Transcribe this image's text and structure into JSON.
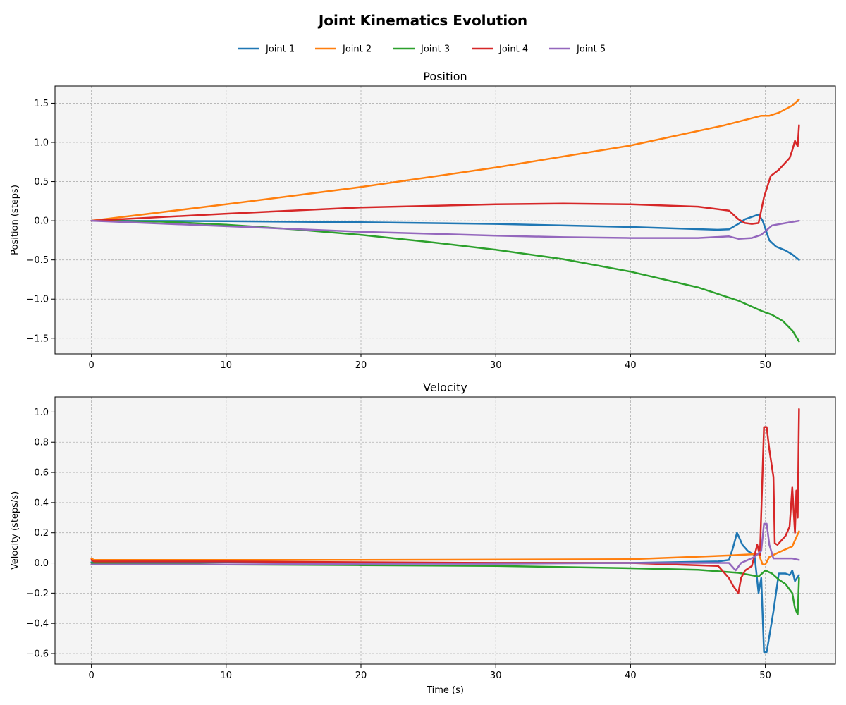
{
  "chart_data": {
    "title": "Joint Kinematics Evolution",
    "type": "line",
    "legend": {
      "placement": "top-center",
      "entries": [
        "Joint 1",
        "Joint 2",
        "Joint 3",
        "Joint 4",
        "Joint 5"
      ]
    },
    "colors": {
      "Joint 1": "#1f77b4",
      "Joint 2": "#ff7f0e",
      "Joint 3": "#2ca02c",
      "Joint 4": "#d62728",
      "Joint 5": "#9467bd"
    },
    "background": "#f4f4f4",
    "grid": true,
    "panels": [
      {
        "title": "Position",
        "xlabel": "",
        "ylabel": "Position (steps)",
        "xlim": [
          -2.7,
          55.2
        ],
        "ylim": [
          -1.7,
          1.72
        ],
        "xticks": [
          0,
          10,
          20,
          30,
          40,
          50
        ],
        "yticks": [
          -1.5,
          -1.0,
          -0.5,
          0.0,
          0.5,
          1.0,
          1.5
        ],
        "ytick_labels": [
          "−1.5",
          "−1.0",
          "−0.5",
          "0.0",
          "0.5",
          "1.0",
          "1.5"
        ],
        "series": [
          {
            "name": "Joint 1",
            "x": [
              0,
              10,
              20,
              30,
              40,
              46.5,
              47.3,
              48.0,
              48.5,
              49.0,
              49.5,
              49.8,
              50.3,
              50.8,
              51.5,
              52.0,
              52.5
            ],
            "y": [
              0,
              -0.005,
              -0.02,
              -0.04,
              -0.08,
              -0.115,
              -0.11,
              -0.04,
              0.02,
              0.05,
              0.08,
              0.0,
              -0.25,
              -0.33,
              -0.38,
              -0.43,
              -0.5
            ]
          },
          {
            "name": "Joint 2",
            "x": [
              0,
              10,
              20,
              30,
              40,
              47,
              49.7,
              50.3,
              51,
              52,
              52.5
            ],
            "y": [
              0,
              0.21,
              0.43,
              0.68,
              0.96,
              1.22,
              1.34,
              1.34,
              1.38,
              1.47,
              1.55
            ]
          },
          {
            "name": "Joint 3",
            "x": [
              0,
              5,
              10,
              15,
              20,
              25,
              30,
              35,
              40,
              45,
              48,
              49.7,
              50.5,
              51.3,
              52,
              52.5
            ],
            "y": [
              0,
              -0.01,
              -0.05,
              -0.11,
              -0.18,
              -0.27,
              -0.37,
              -0.49,
              -0.65,
              -0.85,
              -1.02,
              -1.15,
              -1.2,
              -1.28,
              -1.4,
              -1.54
            ]
          },
          {
            "name": "Joint 4",
            "x": [
              0,
              10,
              20,
              30,
              35,
              40,
              45,
              47.3,
              48.0,
              48.5,
              49.0,
              49.5,
              49.9,
              50.4,
              51.0,
              51.8,
              52.0,
              52.2,
              52.4,
              52.5
            ],
            "y": [
              0,
              0.09,
              0.17,
              0.21,
              0.22,
              0.21,
              0.18,
              0.13,
              0.02,
              -0.03,
              -0.04,
              -0.03,
              0.3,
              0.57,
              0.65,
              0.8,
              0.9,
              1.02,
              0.95,
              1.22
            ]
          },
          {
            "name": "Joint 5",
            "x": [
              0,
              10,
              20,
              30,
              35,
              40,
              45,
              47.3,
              48.0,
              49.0,
              49.7,
              50.5,
              51.5,
              52.5
            ],
            "y": [
              0,
              -0.07,
              -0.14,
              -0.19,
              -0.21,
              -0.22,
              -0.22,
              -0.2,
              -0.23,
              -0.22,
              -0.18,
              -0.06,
              -0.03,
              0.0
            ]
          }
        ]
      },
      {
        "title": "Velocity",
        "xlabel": "Time (s)",
        "ylabel": "Velocity (steps/s)",
        "xlim": [
          -2.7,
          55.2
        ],
        "ylim": [
          -0.67,
          1.1
        ],
        "xticks": [
          0,
          10,
          20,
          30,
          40,
          50
        ],
        "yticks": [
          -0.6,
          -0.4,
          -0.2,
          0.0,
          0.2,
          0.4,
          0.6,
          0.8,
          1.0
        ],
        "ytick_labels": [
          "−0.6",
          "−0.4",
          "−0.2",
          "0.0",
          "0.2",
          "0.4",
          "0.6",
          "0.8",
          "1.0"
        ],
        "series": [
          {
            "name": "Joint 1",
            "x": [
              0,
              10,
              20,
              30,
              40,
              46.5,
              47.3,
              47.6,
              47.9,
              48.3,
              48.7,
              49.2,
              49.5,
              49.7,
              49.9,
              50.1,
              50.6,
              51.0,
              51.5,
              51.8,
              52.0,
              52.2,
              52.5
            ],
            "y": [
              0.005,
              0.005,
              0.0,
              0.0,
              0.0,
              0.01,
              0.02,
              0.1,
              0.2,
              0.12,
              0.08,
              0.05,
              -0.2,
              -0.1,
              -0.59,
              -0.59,
              -0.32,
              -0.07,
              -0.07,
              -0.08,
              -0.05,
              -0.12,
              -0.08
            ]
          },
          {
            "name": "Joint 2",
            "x": [
              0,
              0.2,
              5,
              20,
              40,
              47.5,
              49.5,
              49.8,
              50.0,
              50.3,
              51,
              52,
              52.5
            ],
            "y": [
              0.03,
              0.02,
              0.02,
              0.02,
              0.025,
              0.05,
              0.06,
              -0.01,
              -0.01,
              0.04,
              0.07,
              0.11,
              0.21
            ]
          },
          {
            "name": "Joint 3",
            "x": [
              0,
              10,
              20,
              30,
              40,
              45,
              48,
              49.5,
              50,
              50.5,
              51,
              51.5,
              52,
              52.2,
              52.4,
              52.5
            ],
            "y": [
              0.0,
              -0.01,
              -0.015,
              -0.02,
              -0.035,
              -0.045,
              -0.065,
              -0.09,
              -0.05,
              -0.07,
              -0.11,
              -0.14,
              -0.2,
              -0.3,
              -0.34,
              -0.1
            ]
          },
          {
            "name": "Joint 4",
            "x": [
              0,
              0.2,
              10,
              20,
              30,
              40,
              46.5,
              47.3,
              47.6,
              48.0,
              48.2,
              48.5,
              49.0,
              49.4,
              49.6,
              49.9,
              50.1,
              50.3,
              50.6,
              50.7,
              50.9,
              51.5,
              51.8,
              52.0,
              52.2,
              52.3,
              52.4,
              52.5
            ],
            "y": [
              0.02,
              0.01,
              0.01,
              0.005,
              0.0,
              0.0,
              -0.02,
              -0.1,
              -0.15,
              -0.2,
              -0.1,
              -0.05,
              -0.02,
              0.12,
              0.05,
              0.9,
              0.9,
              0.75,
              0.57,
              0.13,
              0.12,
              0.18,
              0.24,
              0.5,
              0.2,
              0.48,
              0.3,
              1.02
            ]
          },
          {
            "name": "Joint 5",
            "x": [
              0,
              10,
              20,
              30,
              40,
              47.3,
              47.8,
              48.2,
              48.7,
              49.2,
              49.7,
              49.9,
              50.1,
              50.3,
              50.6,
              51,
              52,
              52.5
            ],
            "y": [
              -0.01,
              -0.01,
              -0.005,
              -0.005,
              0.0,
              0.0,
              -0.05,
              0.0,
              0.02,
              0.04,
              0.08,
              0.26,
              0.26,
              0.12,
              0.03,
              0.03,
              0.03,
              0.02
            ]
          }
        ]
      }
    ]
  }
}
